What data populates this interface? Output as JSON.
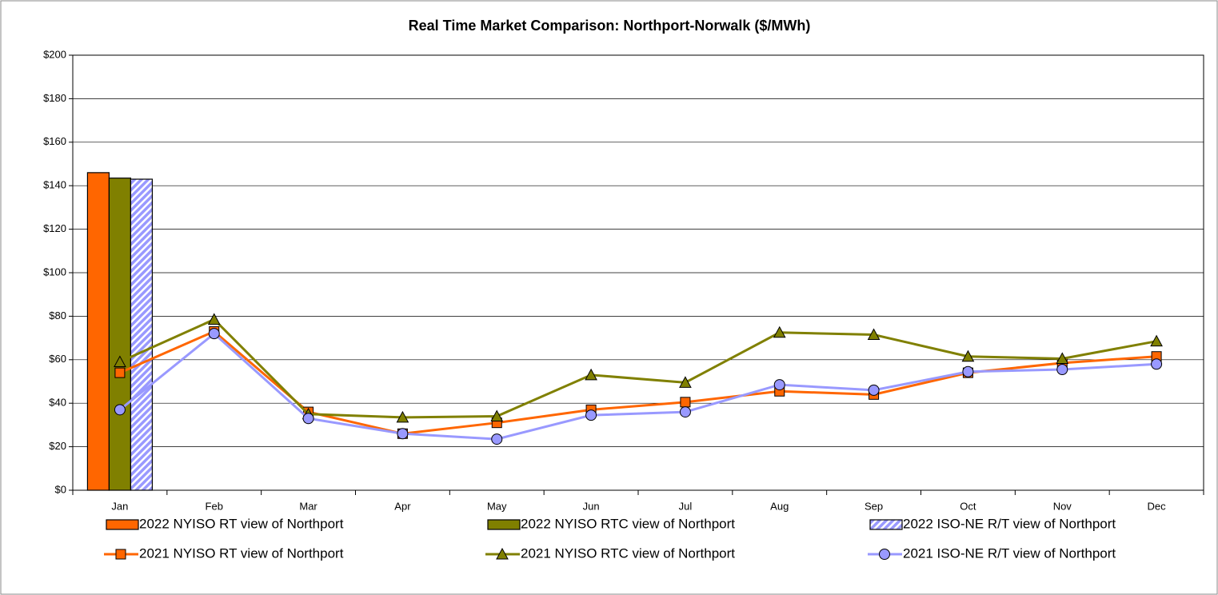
{
  "chart_data": {
    "type": "bar-line",
    "title": "Real Time Market Comparison: Northport-Norwalk ($/MWh)",
    "categories": [
      "Jan",
      "Feb",
      "Mar",
      "Apr",
      "May",
      "Jun",
      "Jul",
      "Aug",
      "Sep",
      "Oct",
      "Nov",
      "Dec"
    ],
    "ylim": [
      0,
      200
    ],
    "yticks": [
      {
        "value": 0,
        "label": "$0"
      },
      {
        "value": 20,
        "label": "$20"
      },
      {
        "value": 40,
        "label": "$40"
      },
      {
        "value": 60,
        "label": "$60"
      },
      {
        "value": 80,
        "label": "$80"
      },
      {
        "value": 100,
        "label": "$100"
      },
      {
        "value": 120,
        "label": "$120"
      },
      {
        "value": 140,
        "label": "$140"
      },
      {
        "value": 160,
        "label": "$160"
      },
      {
        "value": 180,
        "label": "$180"
      },
      {
        "value": 200,
        "label": "$200"
      }
    ],
    "grid": true,
    "series": [
      {
        "name": "2022 NYISO RT view of Northport",
        "type": "bar",
        "color": "#ff6600",
        "values": [
          146,
          null,
          null,
          null,
          null,
          null,
          null,
          null,
          null,
          null,
          null,
          null
        ]
      },
      {
        "name": "2022 NYISO RTC view of Northport",
        "type": "bar",
        "color": "#808000",
        "values": [
          143.5,
          null,
          null,
          null,
          null,
          null,
          null,
          null,
          null,
          null,
          null,
          null
        ]
      },
      {
        "name": "2022 ISO-NE R/T view of Northport",
        "type": "bar",
        "color": "#9999ff",
        "hatch": true,
        "values": [
          143,
          null,
          null,
          null,
          null,
          null,
          null,
          null,
          null,
          null,
          null,
          null
        ]
      },
      {
        "name": "2021 NYISO RT view of Northport",
        "type": "line",
        "marker": "square",
        "color": "#ff6600",
        "values": [
          54,
          73,
          36,
          26,
          31,
          37,
          40.5,
          45.5,
          44,
          54,
          58.5,
          61.5
        ]
      },
      {
        "name": "2021 NYISO RTC view of Northport",
        "type": "line",
        "marker": "triangle",
        "color": "#808000",
        "values": [
          59,
          78.5,
          35,
          33.5,
          34,
          53,
          49.5,
          72.5,
          71.5,
          61.5,
          60.5,
          68.5
        ]
      },
      {
        "name": "2021 ISO-NE R/T view of Northport",
        "type": "line",
        "marker": "circle",
        "color": "#9999ff",
        "values": [
          37,
          72,
          33,
          26,
          23.5,
          34.5,
          36,
          48.5,
          46,
          54.5,
          55.5,
          58
        ]
      }
    ]
  }
}
